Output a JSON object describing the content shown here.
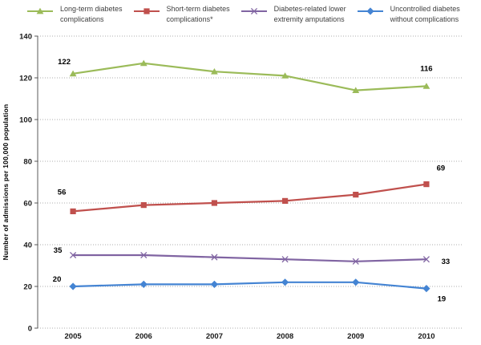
{
  "chart_data": {
    "type": "line",
    "title": "",
    "xlabel": "",
    "ylabel": "Number of admissions per 100,000 population",
    "categories": [
      "2005",
      "2006",
      "2007",
      "2008",
      "2009",
      "2010"
    ],
    "y_ticks": [
      0,
      20,
      40,
      60,
      80,
      100,
      120,
      140
    ],
    "ylim": [
      0,
      140
    ],
    "grid": "horizontal-dotted",
    "legend_position": "top",
    "colors": {
      "grid": "#ADADAD",
      "axis": "#595959",
      "label_text": "#1A1A1A"
    },
    "series": [
      {
        "name": "Long-term diabetes complications",
        "legend_lines": [
          "Long-term diabetes",
          "complications"
        ],
        "color": "#9BBB59",
        "marker": "triangle",
        "values": [
          122,
          127,
          123,
          121,
          114,
          116
        ],
        "first_label": "122",
        "last_label": "116"
      },
      {
        "name": "Short-term diabetes complications*",
        "legend_lines": [
          "Short-term diabetes",
          "complications*"
        ],
        "color": "#C0504D",
        "marker": "square",
        "values": [
          56,
          59,
          60,
          61,
          64,
          69
        ],
        "first_label": "56",
        "last_label": "69"
      },
      {
        "name": "Diabetes-related lower extremity amputations",
        "legend_lines": [
          "Diabetes-related lower",
          "extremity amputations"
        ],
        "color": "#8064A2",
        "marker": "x",
        "values": [
          35,
          35,
          34,
          33,
          32,
          33
        ],
        "first_label": "35",
        "last_label": "33"
      },
      {
        "name": "Uncontrolled diabetes without complications",
        "legend_lines": [
          "Uncontrolled diabetes",
          "without complications"
        ],
        "color": "#4484D3",
        "marker": "diamond",
        "values": [
          20,
          21,
          21,
          22,
          22,
          19
        ],
        "first_label": "20",
        "last_label": "19"
      }
    ]
  }
}
